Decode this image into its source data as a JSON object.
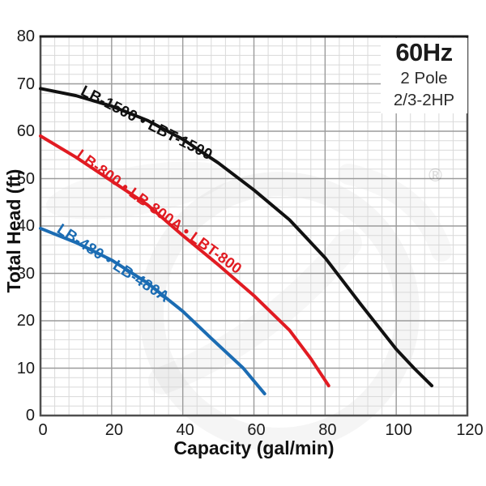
{
  "chart_data": {
    "type": "line",
    "title": "",
    "xlabel": "Capacity (gal/min)",
    "ylabel": "Total Head (ft)",
    "xlim": [
      0,
      120
    ],
    "ylim": [
      0,
      80
    ],
    "x_ticks": [
      0,
      20,
      40,
      60,
      80,
      100,
      120
    ],
    "y_ticks": [
      0,
      10,
      20,
      30,
      40,
      50,
      60,
      70,
      80
    ],
    "x_minor_step": 4,
    "y_minor_step": 2,
    "grid": "major and minor, gray on white",
    "legend_position": "top-right inside plot",
    "series": [
      {
        "name": "LB-1500 • LBT-1500",
        "color": "#111111",
        "x": [
          0,
          10,
          20,
          30,
          40,
          50,
          60,
          70,
          80,
          90,
          100,
          105,
          110
        ],
        "y": [
          69,
          67.5,
          65.3,
          62.3,
          58.3,
          53.3,
          47.6,
          41.3,
          33.3,
          23.5,
          14,
          10,
          6.3
        ]
      },
      {
        "name": "LB-800 • LB-800A • LBT-800",
        "color": "#e11b22",
        "x": [
          0,
          10,
          20,
          30,
          40,
          50,
          60,
          70,
          76,
          81
        ],
        "y": [
          59,
          54.5,
          49.5,
          44.5,
          38,
          31.8,
          25.3,
          18,
          12,
          6.3
        ]
      },
      {
        "name": "LB-480 • LB-480A",
        "color": "#1b6cb3",
        "x": [
          0,
          10,
          20,
          30,
          40,
          48,
          57,
          63
        ],
        "y": [
          39.5,
          36.5,
          32.8,
          28,
          22,
          16.3,
          10,
          4.6
        ]
      }
    ]
  },
  "legend": {
    "line1": "60Hz",
    "line2": "2 Pole",
    "line3": "2/3-2HP"
  },
  "watermark": {
    "symbol": "®"
  },
  "colors": {
    "spine": "#4f4f4f",
    "top_spine": "#1a1a1a",
    "grid_major": "#9b9b9b",
    "grid_minor": "#d9d9d9",
    "tick_text": "#1a1a1a"
  }
}
